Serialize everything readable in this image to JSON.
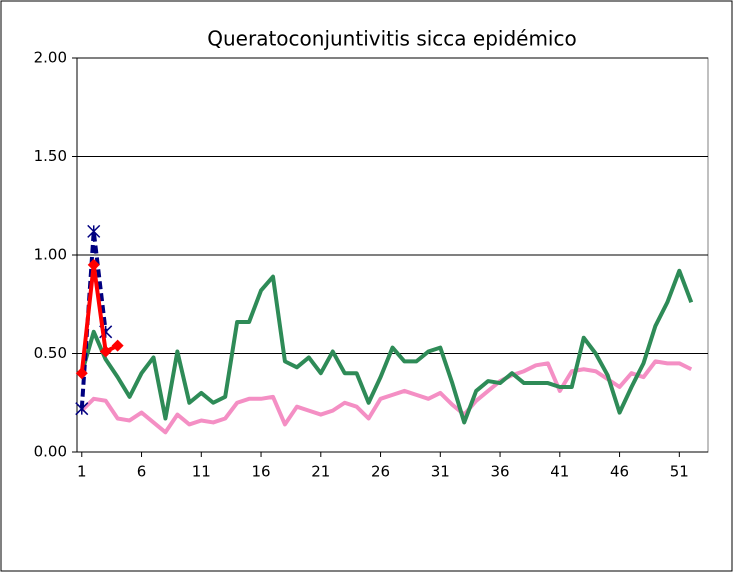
{
  "chart_data": {
    "type": "line",
    "title": "Queratoconjuntivitis  sicca epidémico",
    "x": [
      1,
      2,
      3,
      4,
      5,
      6,
      7,
      8,
      9,
      10,
      11,
      12,
      13,
      14,
      15,
      16,
      17,
      18,
      19,
      20,
      21,
      22,
      23,
      24,
      25,
      26,
      27,
      28,
      29,
      30,
      31,
      32,
      33,
      34,
      35,
      36,
      37,
      38,
      39,
      40,
      41,
      42,
      43,
      44,
      45,
      46,
      47,
      48,
      49,
      50,
      51,
      52
    ],
    "series": [
      {
        "color": "#f48fc4",
        "marker": "none",
        "values": [
          0.21,
          0.27,
          0.26,
          0.17,
          0.16,
          0.2,
          0.15,
          0.1,
          0.19,
          0.14,
          0.16,
          0.15,
          0.17,
          0.25,
          0.27,
          0.27,
          0.28,
          0.14,
          0.23,
          0.21,
          0.19,
          0.21,
          0.25,
          0.23,
          0.17,
          0.27,
          0.29,
          0.31,
          0.29,
          0.27,
          0.3,
          0.24,
          0.19,
          0.26,
          0.31,
          0.36,
          0.39,
          0.41,
          0.44,
          0.45,
          0.31,
          0.41,
          0.42,
          0.41,
          0.37,
          0.33,
          0.4,
          0.38,
          0.46,
          0.45,
          0.45,
          0.42
        ]
      },
      {
        "color": "#2e8b57",
        "marker": "none",
        "values": [
          0.4,
          0.61,
          0.47,
          0.38,
          0.28,
          0.4,
          0.48,
          0.17,
          0.51,
          0.25,
          0.3,
          0.25,
          0.28,
          0.66,
          0.66,
          0.82,
          0.89,
          0.46,
          0.43,
          0.48,
          0.4,
          0.51,
          0.4,
          0.4,
          0.25,
          0.38,
          0.53,
          0.46,
          0.46,
          0.51,
          0.53,
          0.35,
          0.15,
          0.31,
          0.36,
          0.35,
          0.4,
          0.35,
          0.35,
          0.35,
          0.33,
          0.33,
          0.58,
          0.5,
          0.39,
          0.2,
          0.33,
          0.45,
          0.64,
          0.76,
          0.92,
          0.76
        ]
      },
      {
        "color": "#000080",
        "marker": "star",
        "dash": true,
        "values": [
          0.22,
          1.12,
          0.61,
          null,
          null,
          null,
          null,
          null,
          null,
          null,
          null,
          null,
          null,
          null,
          null,
          null,
          null,
          null,
          null,
          null,
          null,
          null,
          null,
          null,
          null,
          null,
          null,
          null,
          null,
          null,
          null,
          null,
          null,
          null,
          null,
          null,
          null,
          null,
          null,
          null,
          null,
          null,
          null,
          null,
          null,
          null,
          null,
          null,
          null,
          null,
          null,
          null
        ]
      },
      {
        "color": "#ff0000",
        "marker": "diamond",
        "values": [
          0.4,
          0.95,
          0.51,
          0.54,
          null,
          null,
          null,
          null,
          null,
          null,
          null,
          null,
          null,
          null,
          null,
          null,
          null,
          null,
          null,
          null,
          null,
          null,
          null,
          null,
          null,
          null,
          null,
          null,
          null,
          null,
          null,
          null,
          null,
          null,
          null,
          null,
          null,
          null,
          null,
          null,
          null,
          null,
          null,
          null,
          null,
          null,
          null,
          null,
          null,
          null,
          null,
          null
        ]
      }
    ],
    "xlim": [
      0.6,
      53.4
    ],
    "xticks": [
      1,
      6,
      11,
      16,
      21,
      26,
      31,
      36,
      41,
      46,
      51
    ],
    "ylim": [
      0,
      2
    ],
    "yticks": [
      {
        "value": 0,
        "label": "0.00"
      },
      {
        "value": 0.5,
        "label": "0.50"
      },
      {
        "value": 1,
        "label": "1.00"
      },
      {
        "value": 1.5,
        "label": "1.50"
      },
      {
        "value": 2,
        "label": "2.00"
      }
    ],
    "grid": true
  }
}
